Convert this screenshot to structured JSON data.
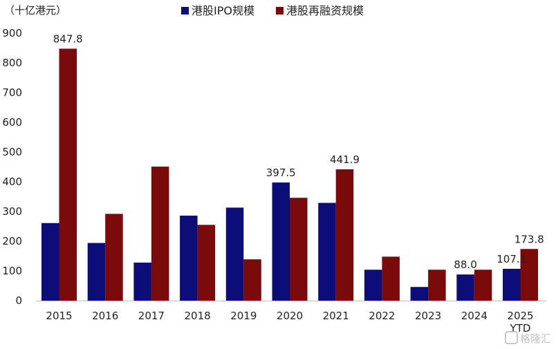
{
  "chart_data": {
    "type": "bar",
    "unit_label": "（十亿港元）",
    "categories": [
      "2015",
      "2016",
      "2017",
      "2018",
      "2019",
      "2020",
      "2021",
      "2022",
      "2023",
      "2024",
      "2025"
    ],
    "category_sub_labels": [
      "",
      "",
      "",
      "",
      "",
      "",
      "",
      "",
      "",
      "",
      "YTD"
    ],
    "series": [
      {
        "name": "港股IPO规模",
        "color": "#0d0d7a",
        "values": [
          261,
          194,
          128,
          286,
          313,
          397.5,
          329,
          104,
          46,
          88.0,
          107.1
        ],
        "data_labels": [
          null,
          null,
          null,
          null,
          null,
          "397.5",
          null,
          null,
          null,
          "88.0",
          "107.1"
        ]
      },
      {
        "name": "港股再融资规模",
        "color": "#7b0a0a",
        "values": [
          847.8,
          292,
          451,
          255,
          139,
          346,
          441.9,
          148,
          104,
          104,
          173.8
        ],
        "data_labels": [
          "847.8",
          null,
          null,
          null,
          null,
          null,
          "441.9",
          null,
          null,
          null,
          "173.8"
        ]
      }
    ],
    "y_ticks": [
      0,
      100,
      200,
      300,
      400,
      500,
      600,
      700,
      800,
      900
    ],
    "ylim": [
      0,
      900
    ],
    "grid": false,
    "legend_position": "top-center"
  },
  "watermark": "格隆汇"
}
